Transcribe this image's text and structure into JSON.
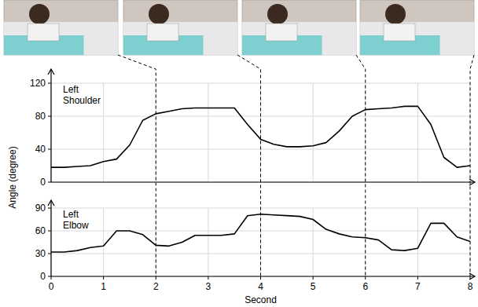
{
  "chart_data": [
    {
      "type": "line",
      "y_label": "Angle (degree)",
      "x": [
        0,
        0.25,
        0.5,
        0.75,
        1,
        1.25,
        1.5,
        1.75,
        2,
        2.25,
        2.5,
        2.75,
        3,
        3.25,
        3.5,
        3.75,
        4,
        4.25,
        4.5,
        4.75,
        5,
        5.25,
        5.5,
        5.75,
        6,
        6.25,
        6.5,
        6.75,
        7,
        7.25,
        7.5,
        7.75,
        8
      ],
      "series": [
        {
          "name": "Left Shoulder",
          "color": "#000000",
          "values": [
            18,
            18,
            19,
            20,
            25,
            28,
            45,
            75,
            83,
            86,
            89,
            90,
            90,
            90,
            90,
            70,
            52,
            46,
            43,
            43,
            44,
            48,
            62,
            80,
            88,
            89,
            90,
            92,
            92,
            70,
            30,
            18,
            20
          ]
        }
      ],
      "xlim": [
        0,
        8
      ],
      "xticks": [
        0,
        1,
        2,
        3,
        4,
        5,
        6,
        7,
        8
      ],
      "ylim": [
        0,
        120
      ],
      "yticks": [
        0,
        40,
        80,
        120
      ],
      "grid": true,
      "tick_labels": "y"
    },
    {
      "type": "line",
      "x_label": "Second",
      "x": [
        0,
        0.25,
        0.5,
        0.75,
        1,
        1.25,
        1.5,
        1.75,
        2,
        2.25,
        2.5,
        2.75,
        3,
        3.25,
        3.5,
        3.75,
        4,
        4.25,
        4.5,
        4.75,
        5,
        5.25,
        5.5,
        5.75,
        6,
        6.25,
        6.5,
        6.75,
        7,
        7.25,
        7.5,
        7.75,
        8
      ],
      "series": [
        {
          "name": "Left Elbow",
          "color": "#000000",
          "values": [
            32,
            32,
            34,
            38,
            40,
            60,
            60,
            55,
            41,
            40,
            45,
            54,
            54,
            54,
            56,
            80,
            82,
            81,
            80,
            79,
            75,
            62,
            56,
            52,
            51,
            48,
            35,
            34,
            37,
            70,
            70,
            52,
            46
          ]
        }
      ],
      "xlim": [
        0,
        8
      ],
      "xticks": [
        0,
        1,
        2,
        3,
        4,
        5,
        6,
        7,
        8
      ],
      "ylim": [
        0,
        90
      ],
      "yticks": [
        0,
        30,
        60,
        90
      ],
      "grid": true
    }
  ],
  "frames": [
    2,
    4,
    6,
    8
  ]
}
